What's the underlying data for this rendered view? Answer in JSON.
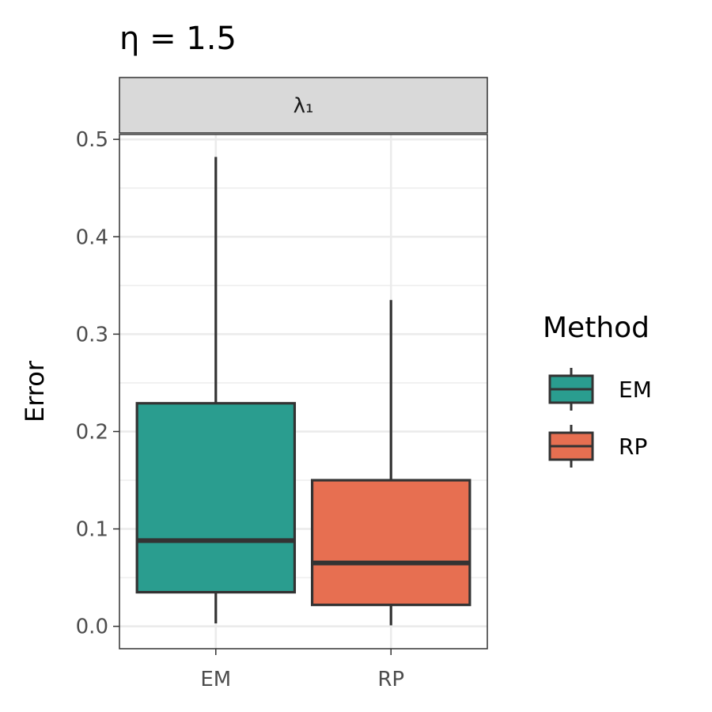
{
  "chart_data": {
    "type": "box",
    "title": "η = 1.5",
    "facet_label": "λ₁",
    "ylabel": "Error",
    "xlabel": "",
    "ylim": [
      -0.023,
      0.505
    ],
    "yticks": [
      0.0,
      0.1,
      0.2,
      0.3,
      0.4,
      0.5
    ],
    "ytick_labels": [
      "0.0",
      "0.1",
      "0.2",
      "0.3",
      "0.4",
      "0.5"
    ],
    "grid": true,
    "categories": [
      "EM",
      "RP"
    ],
    "boxes": [
      {
        "category": "EM",
        "min": 0.003,
        "q1": 0.035,
        "median": 0.088,
        "q3": 0.229,
        "max": 0.482,
        "color": "#2a9d8f"
      },
      {
        "category": "RP",
        "min": 0.001,
        "q1": 0.022,
        "median": 0.065,
        "q3": 0.15,
        "max": 0.335,
        "color": "#e76f51"
      }
    ],
    "legend": {
      "title": "Method",
      "position": "right",
      "entries": [
        {
          "label": "EM",
          "color": "#2a9d8f"
        },
        {
          "label": "RP",
          "color": "#e76f51"
        }
      ]
    }
  }
}
